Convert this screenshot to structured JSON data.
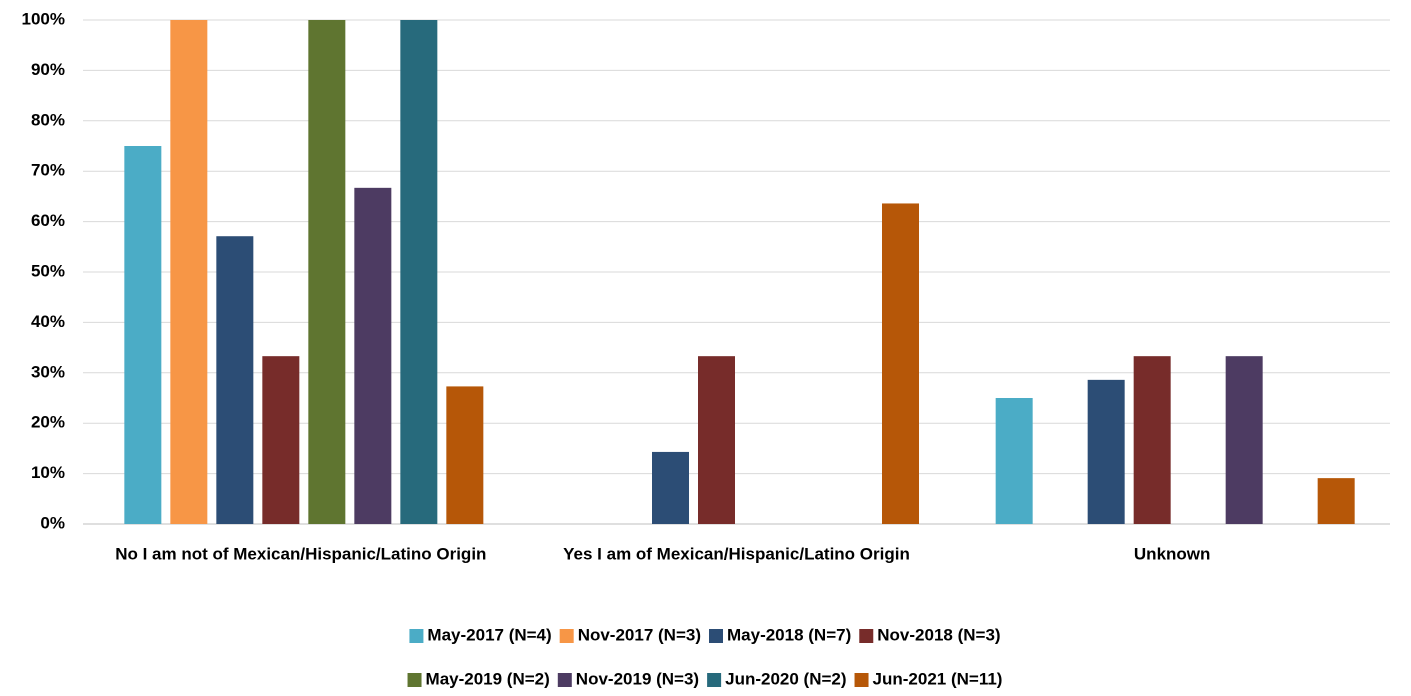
{
  "chart_data": {
    "type": "bar",
    "categories": [
      "No I am not of Mexican/Hispanic/Latino Origin",
      "Yes I am of Mexican/Hispanic/Latino Origin",
      "Unknown"
    ],
    "series": [
      {
        "name": "May-2017 (N=4)",
        "color": "#4bacc6",
        "values": [
          75,
          0,
          25
        ]
      },
      {
        "name": "Nov-2017 (N=3)",
        "color": "#f79646",
        "values": [
          100,
          0,
          0
        ]
      },
      {
        "name": "May-2018 (N=7)",
        "color": "#2c4d75",
        "values": [
          57.1,
          14.3,
          28.6
        ]
      },
      {
        "name": "Nov-2018 (N=3)",
        "color": "#772c2a",
        "values": [
          33.3,
          33.3,
          33.3
        ]
      },
      {
        "name": "May-2019 (N=2)",
        "color": "#5f7530",
        "values": [
          100,
          0,
          0
        ]
      },
      {
        "name": "Nov-2019 (N=3)",
        "color": "#4d3b62",
        "values": [
          66.7,
          0,
          33.3
        ]
      },
      {
        "name": "Jun-2020 (N=2)",
        "color": "#276a7c",
        "values": [
          100,
          0,
          0
        ]
      },
      {
        "name": "Jun-2021 (N=11)",
        "color": "#b65708",
        "values": [
          27.3,
          63.6,
          9.1
        ]
      }
    ],
    "ylim": [
      0,
      100
    ],
    "yticks": [
      {
        "value": 0,
        "label": "0%"
      },
      {
        "value": 10,
        "label": "10%"
      },
      {
        "value": 20,
        "label": "20%"
      },
      {
        "value": 30,
        "label": "30%"
      },
      {
        "value": 40,
        "label": "40%"
      },
      {
        "value": 50,
        "label": "50%"
      },
      {
        "value": 60,
        "label": "60%"
      },
      {
        "value": 70,
        "label": "70%"
      },
      {
        "value": 80,
        "label": "80%"
      },
      {
        "value": 90,
        "label": "90%"
      },
      {
        "value": 100,
        "label": "100%"
      }
    ],
    "grid": true,
    "legend": "bottom"
  }
}
